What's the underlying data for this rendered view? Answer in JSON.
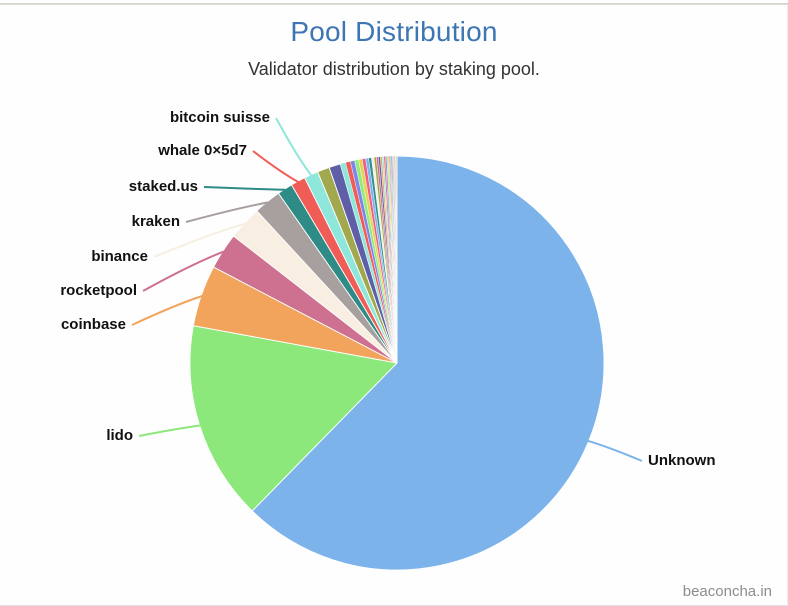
{
  "header": {
    "title": "Pool Distribution",
    "subtitle": "Validator distribution by staking pool."
  },
  "watermark": "beaconcha.in",
  "colors": {
    "title": "#3d76b2",
    "subtitle": "#333333",
    "label": "#111111",
    "watermark": "#8d8d8d"
  },
  "chart_data": {
    "type": "pie",
    "title": "Pool Distribution",
    "subtitle": "Validator distribution by staking pool.",
    "unit": "percent of validators",
    "legend_position": "none",
    "start_angle_deg": 0,
    "direction": "clockwise",
    "labeled_slices": [
      "Unknown",
      "lido",
      "coinbase",
      "rocketpool",
      "binance",
      "kraken",
      "staked.us",
      "whale 0×5d7",
      "bitcoin suisse"
    ],
    "slices": [
      {
        "label": "Unknown",
        "value": 62.5,
        "color": "#7cb3ea"
      },
      {
        "label": "lido",
        "value": 15.6,
        "color": "#8ce87a"
      },
      {
        "label": "coinbase",
        "value": 4.8,
        "color": "#f2a45c"
      },
      {
        "label": "rocketpool",
        "value": 2.85,
        "color": "#ce7090"
      },
      {
        "label": "binance",
        "value": 2.65,
        "color": "#f8eee1"
      },
      {
        "label": "kraken",
        "value": 2.15,
        "color": "#a8a09e"
      },
      {
        "label": "staked.us",
        "value": 1.2,
        "color": "#2e8b85"
      },
      {
        "label": "whale 0×5d7",
        "value": 1.15,
        "color": "#f05c56"
      },
      {
        "label": "bitcoin suisse",
        "value": 1.1,
        "color": "#8fe6da"
      },
      {
        "label": "",
        "value": 0.95,
        "color": "#a2a84e"
      },
      {
        "label": "",
        "value": 0.9,
        "color": "#5f5fa7"
      },
      {
        "label": "",
        "value": 0.42,
        "color": "#8fe6da"
      },
      {
        "label": "",
        "value": 0.38,
        "color": "#f05c56"
      },
      {
        "label": "",
        "value": 0.34,
        "color": "#8085e9"
      },
      {
        "label": "",
        "value": 0.31,
        "color": "#90ed7d"
      },
      {
        "label": "",
        "value": 0.28,
        "color": "#e4d354"
      },
      {
        "label": "",
        "value": 0.26,
        "color": "#f15c80"
      },
      {
        "label": "",
        "value": 0.24,
        "color": "#7cb5ec"
      },
      {
        "label": "",
        "value": 0.22,
        "color": "#2b908f"
      },
      {
        "label": "",
        "value": 0.2,
        "color": "#f8eee1"
      },
      {
        "label": "",
        "value": 0.18,
        "color": "#a2a84e"
      },
      {
        "label": "",
        "value": 0.16,
        "color": "#ce7090"
      },
      {
        "label": "",
        "value": 0.15,
        "color": "#5f5fa7"
      },
      {
        "label": "",
        "value": 0.14,
        "color": "#f2a45c"
      },
      {
        "label": "",
        "value": 0.13,
        "color": "#91e8e1"
      },
      {
        "label": "",
        "value": 0.12,
        "color": "#f45b5b"
      },
      {
        "label": "",
        "value": 0.11,
        "color": "#8085e9"
      },
      {
        "label": "",
        "value": 0.1,
        "color": "#90ed7d"
      },
      {
        "label": "",
        "value": 0.09,
        "color": "#e4d354"
      },
      {
        "label": "",
        "value": 0.08,
        "color": "#f15c80"
      },
      {
        "label": "",
        "value": 0.08,
        "color": "#7cb5ec"
      },
      {
        "label": "",
        "value": 0.07,
        "color": "#2b908f"
      },
      {
        "label": "",
        "value": 0.07,
        "color": "#b5abab"
      },
      {
        "label": "",
        "value": 0.06,
        "color": "#ce7090"
      },
      {
        "label": "",
        "value": 0.06,
        "color": "#a2a84e"
      },
      {
        "label": "",
        "value": 0.05,
        "color": "#5f5fa7"
      },
      {
        "label": "",
        "value": 0.05,
        "color": "#f2a45c"
      },
      {
        "label": "",
        "value": 0.04,
        "color": "#91e8e1"
      },
      {
        "label": "",
        "value": 0.04,
        "color": "#f45b5b"
      }
    ]
  }
}
